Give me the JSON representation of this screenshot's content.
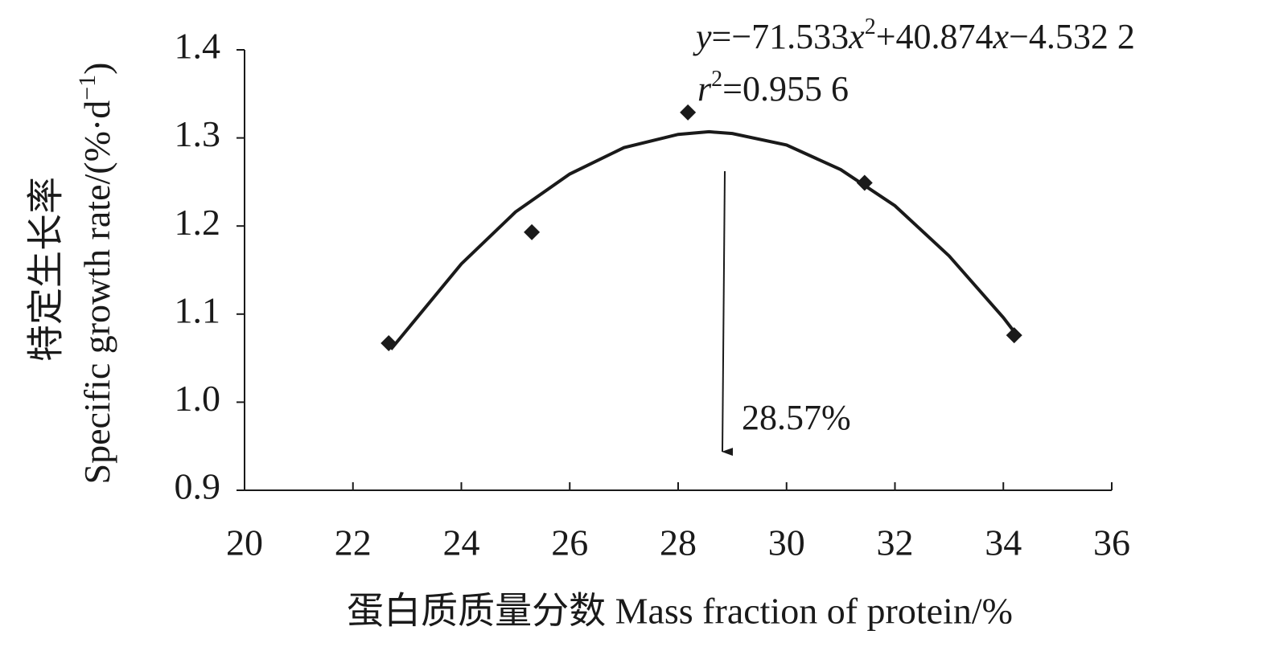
{
  "chart_data": {
    "type": "scatter",
    "x_label": "蛋白质质量分数 Mass fraction of protein/%",
    "y_label_cn": "特定生长率",
    "y_label_en": [
      "Specific growth rate/(%·d",
      "−1",
      ")"
    ],
    "equation": [
      "y",
      "=−71.533",
      "x",
      "2",
      "+40.874",
      "x",
      "−4.532 2"
    ],
    "r_squared": [
      "r",
      "2",
      "=0.955 6"
    ],
    "annotation": "28.57%",
    "x": [
      22.66,
      25.3,
      28.18,
      31.44,
      34.2
    ],
    "values": [
      1.067,
      1.193,
      1.329,
      1.249,
      1.076
    ],
    "color": "#1a1a1a",
    "fit": {
      "x": [
        22.7,
        24,
        25,
        26,
        27,
        28,
        28.57,
        29,
        30,
        31,
        32,
        33,
        34,
        34.2
      ],
      "values": [
        1.06,
        1.157,
        1.216,
        1.259,
        1.289,
        1.304,
        1.307,
        1.305,
        1.292,
        1.264,
        1.223,
        1.166,
        1.096,
        1.08
      ]
    },
    "xlim": [
      20,
      36
    ],
    "xticks": [
      20,
      22,
      24,
      26,
      28,
      30,
      32,
      34,
      36
    ],
    "ylim": [
      0.9,
      1.4
    ],
    "yticks": [
      0.9,
      {
        "value": 1,
        "label": "1.0"
      },
      1.1,
      1.2,
      1.3,
      1.4
    ]
  }
}
